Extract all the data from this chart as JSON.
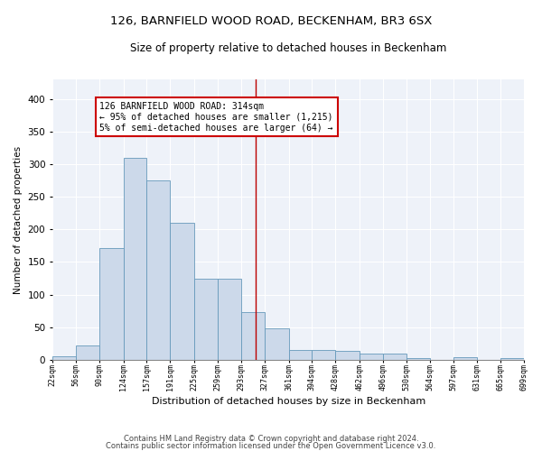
{
  "title": "126, BARNFIELD WOOD ROAD, BECKENHAM, BR3 6SX",
  "subtitle": "Size of property relative to detached houses in Beckenham",
  "xlabel": "Distribution of detached houses by size in Beckenham",
  "ylabel": "Number of detached properties",
  "bar_color": "#ccd9ea",
  "bar_edge_color": "#6699bb",
  "background_color": "#eef2f9",
  "grid_color": "#ffffff",
  "vline_x": 314,
  "vline_color": "#bb0000",
  "annotation_text": "126 BARNFIELD WOOD ROAD: 314sqm\n← 95% of detached houses are smaller (1,215)\n5% of semi-detached houses are larger (64) →",
  "annotation_box_color": "#cc0000",
  "bin_edges": [
    22,
    56,
    90,
    124,
    157,
    191,
    225,
    259,
    293,
    327,
    361,
    394,
    428,
    462,
    496,
    530,
    564,
    597,
    631,
    665,
    699
  ],
  "bar_heights": [
    6,
    22,
    172,
    310,
    275,
    210,
    125,
    125,
    73,
    48,
    15,
    15,
    13,
    9,
    9,
    3,
    0,
    4,
    0,
    2,
    0
  ],
  "ylim": [
    0,
    430
  ],
  "yticks": [
    0,
    50,
    100,
    150,
    200,
    250,
    300,
    350,
    400
  ],
  "footnote1": "Contains HM Land Registry data © Crown copyright and database right 2024.",
  "footnote2": "Contains public sector information licensed under the Open Government Licence v3.0."
}
